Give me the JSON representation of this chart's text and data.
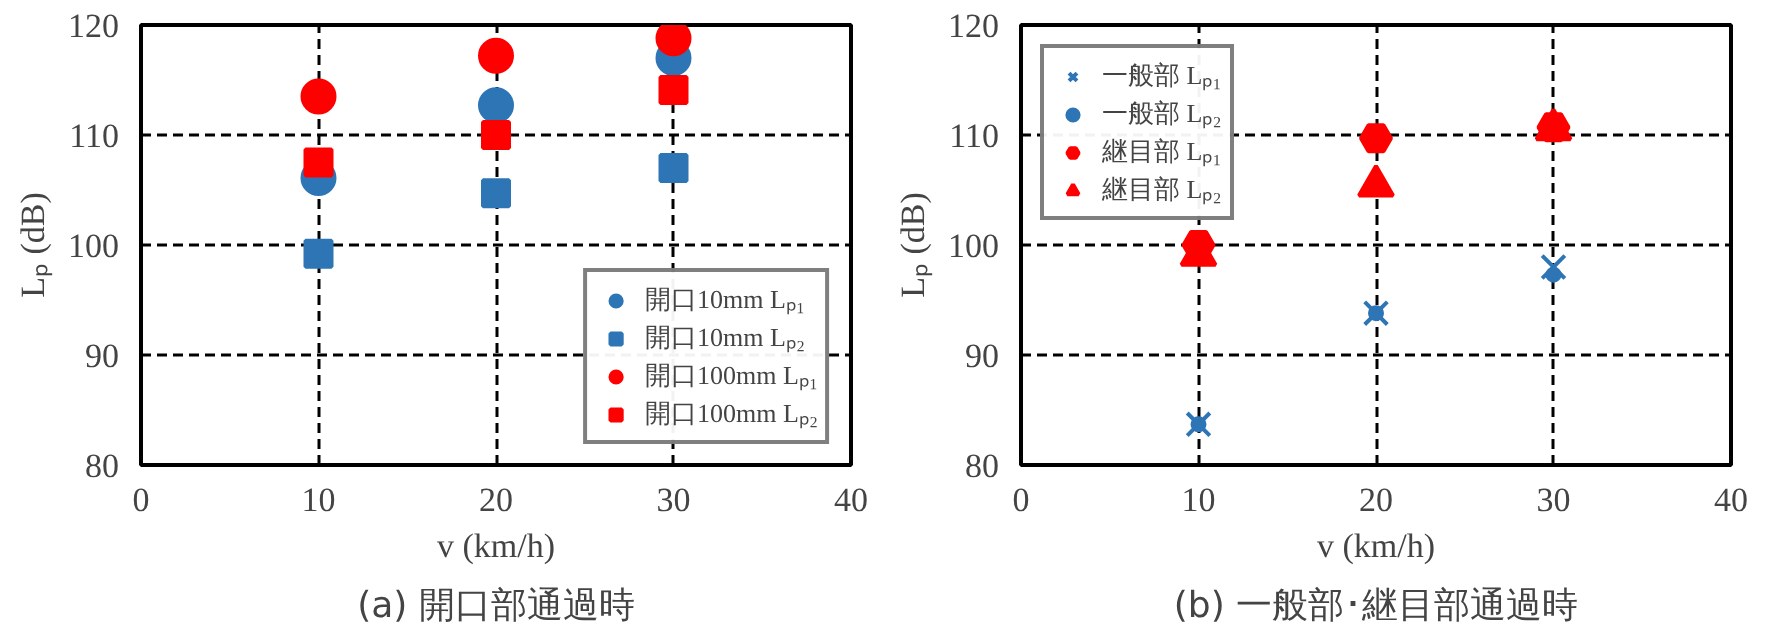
{
  "chart_data": [
    {
      "type": "scatter",
      "title": "(a) 開口部通過時",
      "xlabel": "v (km/h)",
      "ylabel": "Lₚ (dB)",
      "x": [
        10,
        20,
        30
      ],
      "xlim": [
        0,
        40
      ],
      "ylim": [
        80,
        120
      ],
      "xticks": [
        0,
        10,
        20,
        30,
        40
      ],
      "yticks": [
        80,
        90,
        100,
        110,
        120
      ],
      "grid": true,
      "legend": "bottom right",
      "series": [
        {
          "name": "開口10mm Lₚ₁",
          "color": "#2e75b6",
          "marker": "circle",
          "values": [
            106.1,
            112.7,
            117
          ]
        },
        {
          "name": "開口10mm Lₚ₂",
          "color": "#2e75b6",
          "marker": "square",
          "values": [
            99.2,
            104.7,
            107
          ]
        },
        {
          "name": "開口100mm Lₚ₁",
          "color": "#ff0000",
          "marker": "circle",
          "values": [
            113.5,
            117.2,
            118.8
          ]
        },
        {
          "name": "開口100mm Lₚ₂",
          "color": "#ff0000",
          "marker": "square",
          "values": [
            107.5,
            110,
            114.1
          ]
        }
      ]
    },
    {
      "type": "scatter",
      "title": "(b) 一般部･継目部通過時",
      "xlabel": "v (km/h)",
      "ylabel": "Lₚ (dB)",
      "x": [
        10,
        20,
        30
      ],
      "xlim": [
        0,
        40
      ],
      "ylim": [
        80,
        120
      ],
      "xticks": [
        0,
        10,
        20,
        30,
        40
      ],
      "yticks": [
        80,
        90,
        100,
        110,
        120
      ],
      "grid": true,
      "legend": "top left",
      "series": [
        {
          "name": "一般部 Lₚ₁",
          "color": "#2e75b6",
          "marker": "cross",
          "values": [
            83.7,
            93.8,
            98
          ]
        },
        {
          "name": "一般部 Lₚ₂",
          "color": "#2e75b6",
          "marker": "circle",
          "values": [
            83.7,
            93.8,
            97.3
          ]
        },
        {
          "name": "継目部 Lₚ₁",
          "color": "#ff0000",
          "marker": "diamond",
          "values": [
            100,
            109.7,
            110.7
          ]
        },
        {
          "name": "継目部 Lₚ₂",
          "color": "#ff0000",
          "marker": "triangle",
          "values": [
            99.1,
            105.4,
            110.5
          ]
        }
      ]
    }
  ]
}
